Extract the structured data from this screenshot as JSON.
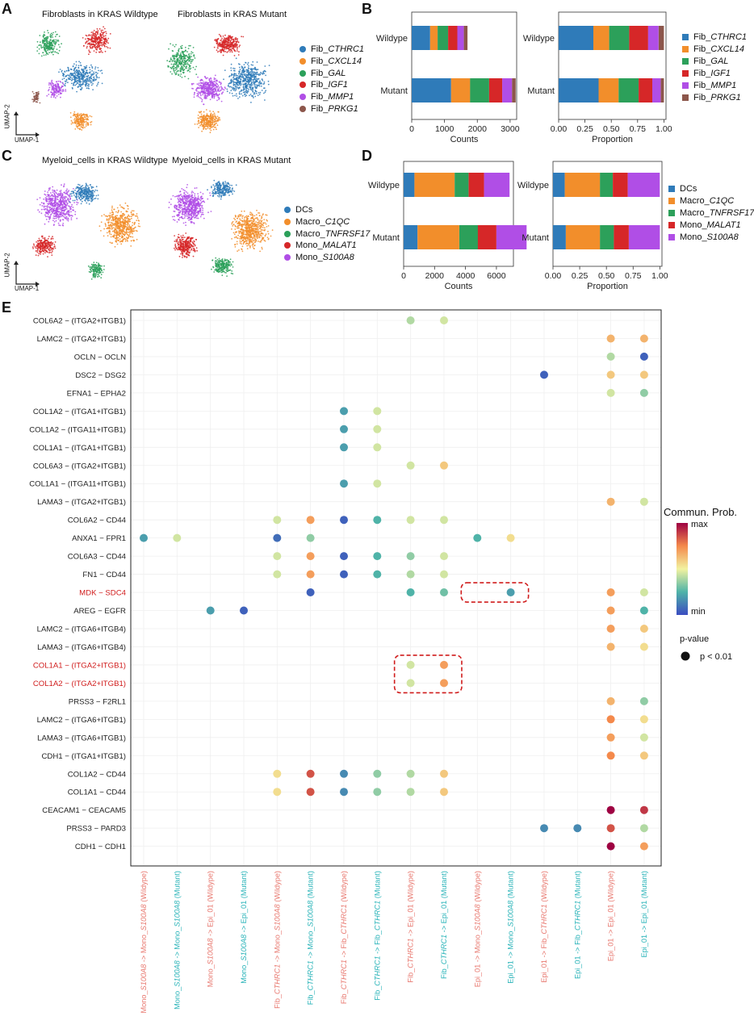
{
  "panels": {
    "A": "A",
    "B": "B",
    "C": "C",
    "D": "D",
    "E": "E"
  },
  "umap": {
    "fib_titles": [
      "Fibroblasts in KRAS Wildtype",
      "Fibroblasts in KRAS Mutant"
    ],
    "mye_titles": [
      "Myeloid_cells in KRAS Wildtype",
      "Myeloid_cells in KRAS Mutant"
    ],
    "axis_x": "UMAP-1",
    "axis_y": "UMAP-2"
  },
  "legend_fib": [
    {
      "prefix": "Fib_",
      "name": "CTHRC1",
      "color": "#2f7bb9"
    },
    {
      "prefix": "Fib_",
      "name": "CXCL14",
      "color": "#f28e2b"
    },
    {
      "prefix": "Fib_",
      "name": "GAL",
      "color": "#2ca05a"
    },
    {
      "prefix": "Fib_",
      "name": "IGF1",
      "color": "#d62728"
    },
    {
      "prefix": "Fib_",
      "name": "MMP1",
      "color": "#b04ee6"
    },
    {
      "prefix": "Fib_",
      "name": "PRKG1",
      "color": "#8c564b"
    }
  ],
  "legend_mye": [
    {
      "prefix": "DCs",
      "name": "",
      "color": "#2f7bb9"
    },
    {
      "prefix": "Macro_",
      "name": "C1QC",
      "color": "#f28e2b"
    },
    {
      "prefix": "Macro_",
      "name": "TNFRSF17",
      "color": "#2ca05a"
    },
    {
      "prefix": "Mono_",
      "name": "MALAT1",
      "color": "#d62728"
    },
    {
      "prefix": "Mono_",
      "name": "S100A8",
      "color": "#b04ee6"
    }
  ],
  "chart_data": [
    {
      "type": "bar",
      "id": "B-counts",
      "orientation": "horizontal-stacked",
      "categories": [
        "Wildype",
        "Mutant"
      ],
      "xlabel": "Counts",
      "xlim": [
        0,
        3200
      ],
      "xticks": [
        0,
        1000,
        2000,
        3000
      ],
      "series": [
        {
          "name": "Fib_CTHRC1",
          "values": [
            560,
            1200
          ]
        },
        {
          "name": "Fib_CXCL14",
          "values": [
            230,
            580
          ]
        },
        {
          "name": "Fib_GAL",
          "values": [
            320,
            580
          ]
        },
        {
          "name": "Fib_IGF1",
          "values": [
            280,
            400
          ]
        },
        {
          "name": "Fib_MMP1",
          "values": [
            200,
            300
          ]
        },
        {
          "name": "Fib_PRKG1",
          "values": [
            110,
            110
          ]
        }
      ]
    },
    {
      "type": "bar",
      "id": "B-prop",
      "orientation": "horizontal-stacked",
      "categories": [
        "Wildype",
        "Mutant"
      ],
      "xlabel": "Proportion",
      "xlim": [
        0,
        1.02
      ],
      "xticks": [
        0.0,
        0.25,
        0.5,
        0.75,
        1.0
      ],
      "series": [
        {
          "name": "Fib_CTHRC1",
          "values": [
            0.33,
            0.38
          ]
        },
        {
          "name": "Fib_CXCL14",
          "values": [
            0.15,
            0.19
          ]
        },
        {
          "name": "Fib_GAL",
          "values": [
            0.19,
            0.19
          ]
        },
        {
          "name": "Fib_IGF1",
          "values": [
            0.18,
            0.13
          ]
        },
        {
          "name": "Fib_MMP1",
          "values": [
            0.1,
            0.08
          ]
        },
        {
          "name": "Fib_PRKG1",
          "values": [
            0.05,
            0.03
          ]
        }
      ]
    },
    {
      "type": "bar",
      "id": "D-counts",
      "orientation": "horizontal-stacked",
      "categories": [
        "Wildype",
        "Mutant"
      ],
      "xlabel": "Counts",
      "xlim": [
        0,
        7100
      ],
      "xticks": [
        0,
        2000,
        4000,
        6000
      ],
      "series": [
        {
          "name": "DCs",
          "values": [
            700,
            900
          ]
        },
        {
          "name": "Macro_C1QC",
          "values": [
            2600,
            2700
          ]
        },
        {
          "name": "Macro_TNFRSF17",
          "values": [
            900,
            1200
          ]
        },
        {
          "name": "Mono_MALAT1",
          "values": [
            1000,
            1200
          ]
        },
        {
          "name": "Mono_S100A8",
          "values": [
            1650,
            1950
          ]
        }
      ]
    },
    {
      "type": "bar",
      "id": "D-prop",
      "orientation": "horizontal-stacked",
      "categories": [
        "Wildype",
        "Mutant"
      ],
      "xlabel": "Proportion",
      "xlim": [
        0,
        1.02
      ],
      "xticks": [
        0.0,
        0.25,
        0.5,
        0.75,
        1.0
      ],
      "series": [
        {
          "name": "DCs",
          "values": [
            0.11,
            0.12
          ]
        },
        {
          "name": "Macro_C1QC",
          "values": [
            0.33,
            0.32
          ]
        },
        {
          "name": "Macro_TNFRSF17",
          "values": [
            0.12,
            0.13
          ]
        },
        {
          "name": "Mono_MALAT1",
          "values": [
            0.14,
            0.14
          ]
        },
        {
          "name": "Mono_S100A8",
          "values": [
            0.3,
            0.29
          ]
        }
      ]
    },
    {
      "type": "scatter",
      "id": "E-dotplot",
      "y_categories": [
        "COL6A2 − (ITGA2+ITGB1)",
        "LAMC2 − (ITGA2+ITGB1)",
        "OCLN − OCLN",
        "DSC2 − DSG2",
        "EFNA1 − EPHA2",
        "COL1A2 − (ITGA1+ITGB1)",
        "COL1A2 − (ITGA11+ITGB1)",
        "COL1A1 − (ITGA1+ITGB1)",
        "COL6A3 − (ITGA2+ITGB1)",
        "COL1A1 − (ITGA11+ITGB1)",
        "LAMA3 − (ITGA2+ITGB1)",
        "COL6A2 − CD44",
        "ANXA1 − FPR1",
        "COL6A3 − CD44",
        "FN1 − CD44",
        "MDK − SDC4",
        "AREG − EGFR",
        "LAMC2 − (ITGA6+ITGB4)",
        "LAMA3 − (ITGA6+ITGB4)",
        "COL1A1 − (ITGA2+ITGB1)",
        "COL1A2 − (ITGA2+ITGB1)",
        "PRSS3 − F2RL1",
        "LAMC2 − (ITGA6+ITGB1)",
        "LAMA3 − (ITGA6+ITGB1)",
        "CDH1 − (ITGA1+ITGB1)",
        "COL1A2 − CD44",
        "COL1A1 − CD44",
        "CEACAM1 − CEACAM5",
        "PRSS3 − PARD3",
        "CDH1 − CDH1"
      ],
      "highlight_rows": [
        15,
        19,
        20
      ],
      "x_categories": [
        {
          "pre": "Mono_",
          "it": "S100A8",
          "mid": " -> Mono_",
          "it2": "S100A8",
          "post": " (Wildype)",
          "cond": "wt"
        },
        {
          "pre": "Mono_",
          "it": "S100A8",
          "mid": " -> Mono_",
          "it2": "S100A8",
          "post": " (Mutant)",
          "cond": "mut"
        },
        {
          "pre": "Mono_",
          "it": "S100A8",
          "mid": " -> Epi_01",
          "it2": "",
          "post": " (Wildype)",
          "cond": "wt"
        },
        {
          "pre": "Mono_",
          "it": "S100A8",
          "mid": " -> Epi_01",
          "it2": "",
          "post": " (Mutant)",
          "cond": "mut"
        },
        {
          "pre": "Fib_",
          "it": "CTHRC1",
          "mid": " -> Mono_",
          "it2": "S100A8",
          "post": " (Wildype)",
          "cond": "wt"
        },
        {
          "pre": "Fib_",
          "it": "CTHRC1",
          "mid": " -> Mono_",
          "it2": "S100A8",
          "post": " (Mutant)",
          "cond": "mut"
        },
        {
          "pre": "Fib_",
          "it": "CTHRC1",
          "mid": " -> Fib_",
          "it2": "CTHRC1",
          "post": " (Wildype)",
          "cond": "wt"
        },
        {
          "pre": "Fib_",
          "it": "CTHRC1",
          "mid": " -> Fib_",
          "it2": "CTHRC1",
          "post": " (Mutant)",
          "cond": "mut"
        },
        {
          "pre": "Fib_",
          "it": "CTHRC1",
          "mid": " -> Epi_01",
          "it2": "",
          "post": " (Wildype)",
          "cond": "wt"
        },
        {
          "pre": "Fib_",
          "it": "CTHRC1",
          "mid": " -> Epi_01",
          "it2": "",
          "post": " (Mutant)",
          "cond": "mut"
        },
        {
          "pre": "Epi_01 -> Mono_",
          "it": "S100A8",
          "mid": "",
          "it2": "",
          "post": " (Wildype)",
          "cond": "wt"
        },
        {
          "pre": "Epi_01 -> Mono_",
          "it": "S100A8",
          "mid": "",
          "it2": "",
          "post": " (Mutant)",
          "cond": "mut"
        },
        {
          "pre": "Epi_01 -> Fib_",
          "it": "CTHRC1",
          "mid": "",
          "it2": "",
          "post": " (Wildype)",
          "cond": "wt"
        },
        {
          "pre": "Epi_01 -> Fib_",
          "it": "CTHRC1",
          "mid": "",
          "it2": "",
          "post": " (Mutant)",
          "cond": "mut"
        },
        {
          "pre": "Epi_01 -> Epi_01",
          "it": "",
          "mid": "",
          "it2": "",
          "post": " (Wildype)",
          "cond": "wt"
        },
        {
          "pre": "Epi_01 -> Epi_01",
          "it": "",
          "mid": "",
          "it2": "",
          "post": " (Mutant)",
          "cond": "mut"
        }
      ],
      "points": [
        [
          0,
          8,
          0.4
        ],
        [
          0,
          9,
          0.45
        ],
        [
          1,
          14,
          0.65
        ],
        [
          1,
          15,
          0.65
        ],
        [
          2,
          14,
          0.4
        ],
        [
          2,
          15,
          0.05
        ],
        [
          3,
          12,
          0.05
        ],
        [
          3,
          14,
          0.6
        ],
        [
          3,
          15,
          0.6
        ],
        [
          4,
          14,
          0.45
        ],
        [
          4,
          15,
          0.35
        ],
        [
          5,
          6,
          0.2
        ],
        [
          5,
          7,
          0.45
        ],
        [
          6,
          6,
          0.2
        ],
        [
          6,
          7,
          0.45
        ],
        [
          7,
          6,
          0.2
        ],
        [
          7,
          7,
          0.45
        ],
        [
          8,
          8,
          0.45
        ],
        [
          8,
          9,
          0.6
        ],
        [
          9,
          6,
          0.2
        ],
        [
          9,
          7,
          0.45
        ],
        [
          10,
          14,
          0.65
        ],
        [
          10,
          15,
          0.45
        ],
        [
          11,
          4,
          0.45
        ],
        [
          11,
          5,
          0.7
        ],
        [
          11,
          6,
          0.05
        ],
        [
          11,
          7,
          0.25
        ],
        [
          11,
          8,
          0.45
        ],
        [
          11,
          9,
          0.45
        ],
        [
          12,
          0,
          0.2
        ],
        [
          12,
          1,
          0.45
        ],
        [
          12,
          4,
          0.08
        ],
        [
          12,
          5,
          0.35
        ],
        [
          12,
          10,
          0.25
        ],
        [
          12,
          11,
          0.55
        ],
        [
          13,
          4,
          0.45
        ],
        [
          13,
          5,
          0.7
        ],
        [
          13,
          6,
          0.05
        ],
        [
          13,
          7,
          0.25
        ],
        [
          13,
          8,
          0.35
        ],
        [
          13,
          9,
          0.45
        ],
        [
          14,
          4,
          0.45
        ],
        [
          14,
          5,
          0.7
        ],
        [
          14,
          6,
          0.05
        ],
        [
          14,
          7,
          0.25
        ],
        [
          14,
          8,
          0.4
        ],
        [
          14,
          9,
          0.45
        ],
        [
          15,
          5,
          0.05
        ],
        [
          15,
          8,
          0.25
        ],
        [
          15,
          9,
          0.3
        ],
        [
          15,
          11,
          0.2
        ],
        [
          15,
          14,
          0.7
        ],
        [
          15,
          15,
          0.45
        ],
        [
          16,
          2,
          0.2
        ],
        [
          16,
          3,
          0.05
        ],
        [
          16,
          14,
          0.7
        ],
        [
          16,
          15,
          0.25
        ],
        [
          17,
          14,
          0.7
        ],
        [
          17,
          15,
          0.6
        ],
        [
          18,
          14,
          0.65
        ],
        [
          18,
          15,
          0.55
        ],
        [
          19,
          8,
          0.45
        ],
        [
          19,
          9,
          0.7
        ],
        [
          20,
          8,
          0.45
        ],
        [
          20,
          9,
          0.7
        ],
        [
          21,
          14,
          0.65
        ],
        [
          21,
          15,
          0.35
        ],
        [
          22,
          14,
          0.75
        ],
        [
          22,
          15,
          0.55
        ],
        [
          23,
          14,
          0.7
        ],
        [
          23,
          15,
          0.45
        ],
        [
          24,
          14,
          0.75
        ],
        [
          24,
          15,
          0.6
        ],
        [
          25,
          4,
          0.55
        ],
        [
          25,
          5,
          0.85
        ],
        [
          25,
          6,
          0.15
        ],
        [
          25,
          7,
          0.35
        ],
        [
          25,
          8,
          0.4
        ],
        [
          25,
          9,
          0.6
        ],
        [
          26,
          4,
          0.55
        ],
        [
          26,
          5,
          0.85
        ],
        [
          26,
          6,
          0.15
        ],
        [
          26,
          7,
          0.35
        ],
        [
          26,
          8,
          0.4
        ],
        [
          26,
          9,
          0.6
        ],
        [
          27,
          14,
          1.0
        ],
        [
          27,
          15,
          0.9
        ],
        [
          28,
          12,
          0.15
        ],
        [
          28,
          13,
          0.15
        ],
        [
          28,
          14,
          0.85
        ],
        [
          28,
          15,
          0.4
        ],
        [
          29,
          14,
          1.0
        ],
        [
          29,
          15,
          0.7
        ]
      ],
      "highlight_boxes": [
        {
          "rows": [
            15,
            15
          ],
          "cols": [
            10,
            11
          ]
        },
        {
          "rows": [
            19,
            20
          ],
          "cols": [
            8,
            9
          ]
        }
      ]
    }
  ],
  "dot_legend": {
    "title": "Commun. Prob.",
    "max": "max",
    "min": "min",
    "pv_title": "p-value",
    "pv_label": "p < 0.01"
  },
  "colors": {
    "wildtype": "#e8786f",
    "mutant": "#28b3b8",
    "highlight": "#d01c1c",
    "axis": "#222222"
  }
}
